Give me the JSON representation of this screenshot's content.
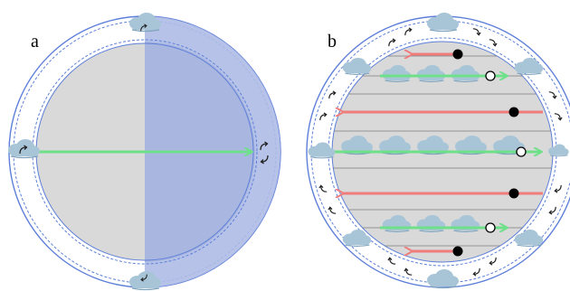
{
  "panels": {
    "a": {
      "label": "a"
    },
    "b": {
      "label": "b"
    }
  },
  "colors": {
    "sphere_gray": "#d9d9d9",
    "shade_blue": "#9fb0de",
    "ring_blue": "#5d7fd9",
    "ring_fill": "#ffffff",
    "arrow_green": "#6fe08a",
    "arrow_red": "#f07c7c",
    "cloud": "#a8c5d8",
    "cloud_dark": "#7fa3bd",
    "stripe": "#7a7a7a"
  },
  "icons": {
    "cloud": "cloud-icon",
    "swirl": "curved-arrow-icon",
    "filled_dot": "filled-circle-icon",
    "open_dot": "open-circle-icon"
  }
}
